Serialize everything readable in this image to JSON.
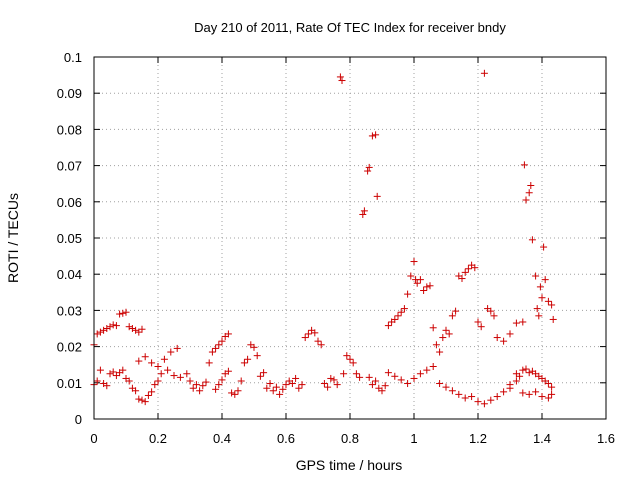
{
  "chart_data": {
    "type": "scatter",
    "title": "Day 210 of 2011, Rate Of TEC Index for receiver bndy",
    "xlabel": "GPS time / hours",
    "ylabel": "ROTI / TECUs",
    "xlim": [
      0,
      1.6
    ],
    "ylim": [
      0,
      0.1
    ],
    "x_ticks": [
      "0",
      "0.2",
      "0.4",
      "0.6",
      "0.8",
      "1",
      "1.2",
      "1.4",
      "1.6"
    ],
    "y_ticks": [
      "0",
      "0.01",
      "0.02",
      "0.03",
      "0.04",
      "0.05",
      "0.06",
      "0.07",
      "0.08",
      "0.09",
      "0.1"
    ],
    "grid": true,
    "marker": "+",
    "marker_color": "#cc0000",
    "series": [
      {
        "points": [
          [
            0.0,
            0.0205
          ],
          [
            0.01,
            0.0235
          ],
          [
            0.02,
            0.024
          ],
          [
            0.03,
            0.0245
          ],
          [
            0.04,
            0.025
          ],
          [
            0.05,
            0.0255
          ],
          [
            0.06,
            0.026
          ],
          [
            0.07,
            0.0258
          ],
          [
            0.08,
            0.029
          ],
          [
            0.09,
            0.0292
          ],
          [
            0.1,
            0.0295
          ],
          [
            0.11,
            0.0255
          ],
          [
            0.12,
            0.025
          ],
          [
            0.13,
            0.0245
          ],
          [
            0.14,
            0.024
          ],
          [
            0.15,
            0.0248
          ],
          [
            0.0,
            0.0095
          ],
          [
            0.01,
            0.0105
          ],
          [
            0.02,
            0.0135
          ],
          [
            0.03,
            0.0098
          ],
          [
            0.04,
            0.0092
          ],
          [
            0.05,
            0.0125
          ],
          [
            0.06,
            0.013
          ],
          [
            0.07,
            0.012
          ],
          [
            0.08,
            0.0128
          ],
          [
            0.09,
            0.0135
          ],
          [
            0.1,
            0.0112
          ],
          [
            0.11,
            0.0105
          ],
          [
            0.12,
            0.0085
          ],
          [
            0.13,
            0.0078
          ],
          [
            0.14,
            0.0055
          ],
          [
            0.15,
            0.0052
          ],
          [
            0.16,
            0.0048
          ],
          [
            0.17,
            0.0065
          ],
          [
            0.18,
            0.0075
          ],
          [
            0.19,
            0.0095
          ],
          [
            0.2,
            0.0105
          ],
          [
            0.14,
            0.016
          ],
          [
            0.16,
            0.0172
          ],
          [
            0.18,
            0.0155
          ],
          [
            0.2,
            0.0145
          ],
          [
            0.22,
            0.0165
          ],
          [
            0.24,
            0.0185
          ],
          [
            0.26,
            0.0195
          ],
          [
            0.21,
            0.0125
          ],
          [
            0.23,
            0.0135
          ],
          [
            0.25,
            0.012
          ],
          [
            0.27,
            0.0115
          ],
          [
            0.29,
            0.0125
          ],
          [
            0.3,
            0.0105
          ],
          [
            0.31,
            0.0085
          ],
          [
            0.32,
            0.0095
          ],
          [
            0.33,
            0.0078
          ],
          [
            0.34,
            0.0092
          ],
          [
            0.35,
            0.0102
          ],
          [
            0.36,
            0.0155
          ],
          [
            0.37,
            0.0185
          ],
          [
            0.38,
            0.0195
          ],
          [
            0.39,
            0.0205
          ],
          [
            0.4,
            0.0215
          ],
          [
            0.41,
            0.0228
          ],
          [
            0.42,
            0.0235
          ],
          [
            0.38,
            0.0082
          ],
          [
            0.39,
            0.0095
          ],
          [
            0.4,
            0.0108
          ],
          [
            0.41,
            0.0125
          ],
          [
            0.42,
            0.0132
          ],
          [
            0.43,
            0.0072
          ],
          [
            0.44,
            0.0068
          ],
          [
            0.45,
            0.0078
          ],
          [
            0.46,
            0.0105
          ],
          [
            0.47,
            0.0155
          ],
          [
            0.48,
            0.0165
          ],
          [
            0.49,
            0.0205
          ],
          [
            0.5,
            0.0198
          ],
          [
            0.51,
            0.0175
          ],
          [
            0.52,
            0.0118
          ],
          [
            0.53,
            0.0128
          ],
          [
            0.54,
            0.0085
          ],
          [
            0.55,
            0.0098
          ],
          [
            0.56,
            0.0078
          ],
          [
            0.57,
            0.0088
          ],
          [
            0.58,
            0.0068
          ],
          [
            0.59,
            0.0082
          ],
          [
            0.6,
            0.0095
          ],
          [
            0.61,
            0.0105
          ],
          [
            0.62,
            0.0098
          ],
          [
            0.63,
            0.0112
          ],
          [
            0.64,
            0.0085
          ],
          [
            0.65,
            0.0095
          ],
          [
            0.66,
            0.0225
          ],
          [
            0.67,
            0.0235
          ],
          [
            0.68,
            0.0245
          ],
          [
            0.69,
            0.0238
          ],
          [
            0.7,
            0.0215
          ],
          [
            0.71,
            0.0205
          ],
          [
            0.72,
            0.0098
          ],
          [
            0.73,
            0.0088
          ],
          [
            0.74,
            0.0112
          ],
          [
            0.75,
            0.0108
          ],
          [
            0.76,
            0.0095
          ],
          [
            0.77,
            0.0945
          ],
          [
            0.775,
            0.0935
          ],
          [
            0.78,
            0.0125
          ],
          [
            0.79,
            0.0175
          ],
          [
            0.8,
            0.0165
          ],
          [
            0.81,
            0.0155
          ],
          [
            0.82,
            0.0125
          ],
          [
            0.83,
            0.0115
          ],
          [
            0.84,
            0.0565
          ],
          [
            0.845,
            0.0575
          ],
          [
            0.855,
            0.0685
          ],
          [
            0.86,
            0.0695
          ],
          [
            0.87,
            0.0782
          ],
          [
            0.88,
            0.0785
          ],
          [
            0.885,
            0.0615
          ],
          [
            0.86,
            0.0115
          ],
          [
            0.87,
            0.0095
          ],
          [
            0.88,
            0.0105
          ],
          [
            0.89,
            0.0085
          ],
          [
            0.9,
            0.0078
          ],
          [
            0.91,
            0.0092
          ],
          [
            0.92,
            0.0258
          ],
          [
            0.93,
            0.0268
          ],
          [
            0.94,
            0.0275
          ],
          [
            0.95,
            0.0285
          ],
          [
            0.96,
            0.0295
          ],
          [
            0.97,
            0.0305
          ],
          [
            0.98,
            0.0345
          ],
          [
            0.99,
            0.0395
          ],
          [
            1.0,
            0.0435
          ],
          [
            1.005,
            0.0385
          ],
          [
            1.01,
            0.0375
          ],
          [
            1.02,
            0.0385
          ],
          [
            1.03,
            0.0355
          ],
          [
            1.04,
            0.0365
          ],
          [
            1.05,
            0.0368
          ],
          [
            1.06,
            0.0252
          ],
          [
            1.07,
            0.0205
          ],
          [
            1.08,
            0.0185
          ],
          [
            1.09,
            0.0225
          ],
          [
            1.1,
            0.0245
          ],
          [
            1.11,
            0.0235
          ],
          [
            1.12,
            0.0285
          ],
          [
            1.13,
            0.0298
          ],
          [
            1.14,
            0.0395
          ],
          [
            1.15,
            0.0388
          ],
          [
            1.16,
            0.0405
          ],
          [
            1.17,
            0.0415
          ],
          [
            1.18,
            0.0425
          ],
          [
            1.19,
            0.0418
          ],
          [
            1.2,
            0.0268
          ],
          [
            1.21,
            0.0255
          ],
          [
            1.22,
            0.0955
          ],
          [
            1.23,
            0.0305
          ],
          [
            1.24,
            0.0298
          ],
          [
            1.25,
            0.0285
          ],
          [
            0.92,
            0.0128
          ],
          [
            0.94,
            0.0118
          ],
          [
            0.96,
            0.0108
          ],
          [
            0.98,
            0.0098
          ],
          [
            1.0,
            0.0112
          ],
          [
            1.02,
            0.0125
          ],
          [
            1.04,
            0.0135
          ],
          [
            1.06,
            0.0145
          ],
          [
            1.08,
            0.0098
          ],
          [
            1.1,
            0.0088
          ],
          [
            1.12,
            0.0078
          ],
          [
            1.14,
            0.0068
          ],
          [
            1.16,
            0.0058
          ],
          [
            1.18,
            0.0062
          ],
          [
            1.2,
            0.0048
          ],
          [
            1.22,
            0.0042
          ],
          [
            1.24,
            0.0052
          ],
          [
            1.26,
            0.0062
          ],
          [
            1.28,
            0.0075
          ],
          [
            1.3,
            0.0085
          ],
          [
            1.26,
            0.0225
          ],
          [
            1.28,
            0.0215
          ],
          [
            1.3,
            0.0235
          ],
          [
            1.32,
            0.0265
          ],
          [
            1.34,
            0.0268
          ],
          [
            1.345,
            0.0702
          ],
          [
            1.35,
            0.0605
          ],
          [
            1.36,
            0.0625
          ],
          [
            1.365,
            0.0645
          ],
          [
            1.37,
            0.0495
          ],
          [
            1.38,
            0.0395
          ],
          [
            1.385,
            0.0305
          ],
          [
            1.39,
            0.0285
          ],
          [
            1.4,
            0.0335
          ],
          [
            1.405,
            0.0475
          ],
          [
            1.41,
            0.0385
          ],
          [
            1.42,
            0.0325
          ],
          [
            1.43,
            0.0315
          ],
          [
            1.435,
            0.0275
          ],
          [
            1.395,
            0.0365
          ],
          [
            1.32,
            0.0125
          ],
          [
            1.33,
            0.0118
          ],
          [
            1.34,
            0.0135
          ],
          [
            1.35,
            0.0138
          ],
          [
            1.36,
            0.0128
          ],
          [
            1.37,
            0.0132
          ],
          [
            1.38,
            0.0125
          ],
          [
            1.39,
            0.0118
          ],
          [
            1.4,
            0.0112
          ],
          [
            1.41,
            0.0105
          ],
          [
            1.42,
            0.0098
          ],
          [
            1.43,
            0.0088
          ],
          [
            1.34,
            0.0072
          ],
          [
            1.36,
            0.0068
          ],
          [
            1.38,
            0.0075
          ],
          [
            1.4,
            0.0062
          ],
          [
            1.42,
            0.0058
          ],
          [
            1.43,
            0.0068
          ],
          [
            1.3,
            0.0095
          ],
          [
            1.32,
            0.0105
          ]
        ]
      }
    ]
  }
}
